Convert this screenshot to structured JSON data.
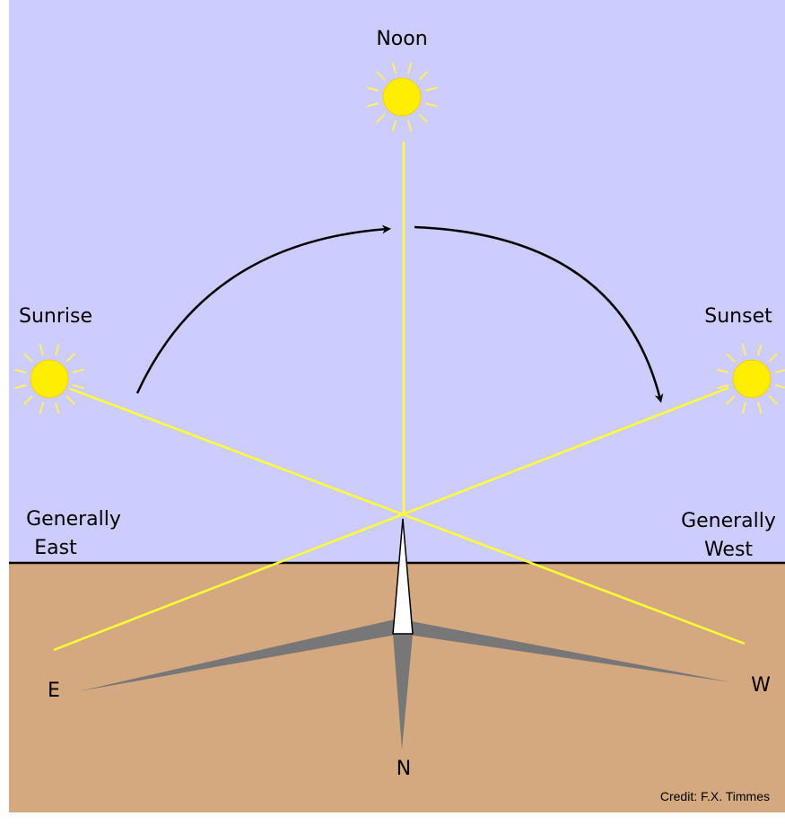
{
  "labels": {
    "noon": "Noon",
    "sunrise": "Sunrise",
    "sunset": "Sunset",
    "generally_east": [
      "Generally",
      "East"
    ],
    "generally_west": [
      "Generally",
      "West"
    ],
    "east": "E",
    "west": "W",
    "north": "N",
    "credit": "Credit: F.X. Timmes"
  }
}
